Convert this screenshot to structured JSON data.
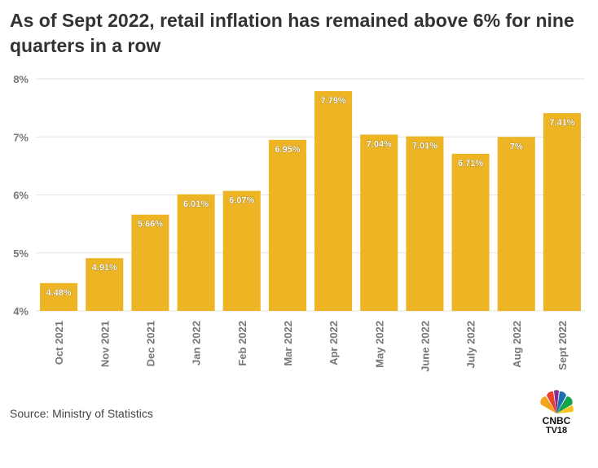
{
  "title": "As of Sept 2022, retail inflation has remained above 6% for nine quarters in a row",
  "source": "Source: Ministry of Statistics",
  "logo": {
    "line1": "CNBC",
    "line2": "TV18"
  },
  "colors": {
    "bar": "#EDB523",
    "grid": "#E3E3E3",
    "axis_text": "#777777",
    "label_text": "#FFFFFF"
  },
  "chart_data": {
    "type": "bar",
    "title": "As of Sept 2022, retail inflation has remained above 6% for nine quarters in a row",
    "xlabel": "",
    "ylabel": "",
    "categories": [
      "Oct 2021",
      "Nov 2021",
      "Dec 2021",
      "Jan 2022",
      "Feb 2022",
      "Mar 2022",
      "Apr 2022",
      "May 2022",
      "June 2022",
      "July 2022",
      "Aug 2022",
      "Sept 2022"
    ],
    "values": [
      4.48,
      4.91,
      5.66,
      6.01,
      6.07,
      6.95,
      7.79,
      7.04,
      7.01,
      6.71,
      7,
      7.41
    ],
    "data_labels": [
      "4.48%",
      "4.91%",
      "5.66%",
      "6.01%",
      "6.07%",
      "6.95%",
      "7.79%",
      "7.04%",
      "7.01%",
      "6.71%",
      "7%",
      "7.41%"
    ],
    "ylim": [
      4,
      8
    ],
    "yticks": [
      4,
      5,
      6,
      7,
      8
    ],
    "ytick_labels": [
      "4%",
      "5%",
      "6%",
      "7%",
      "8%"
    ],
    "grid": true,
    "legend": "none"
  }
}
